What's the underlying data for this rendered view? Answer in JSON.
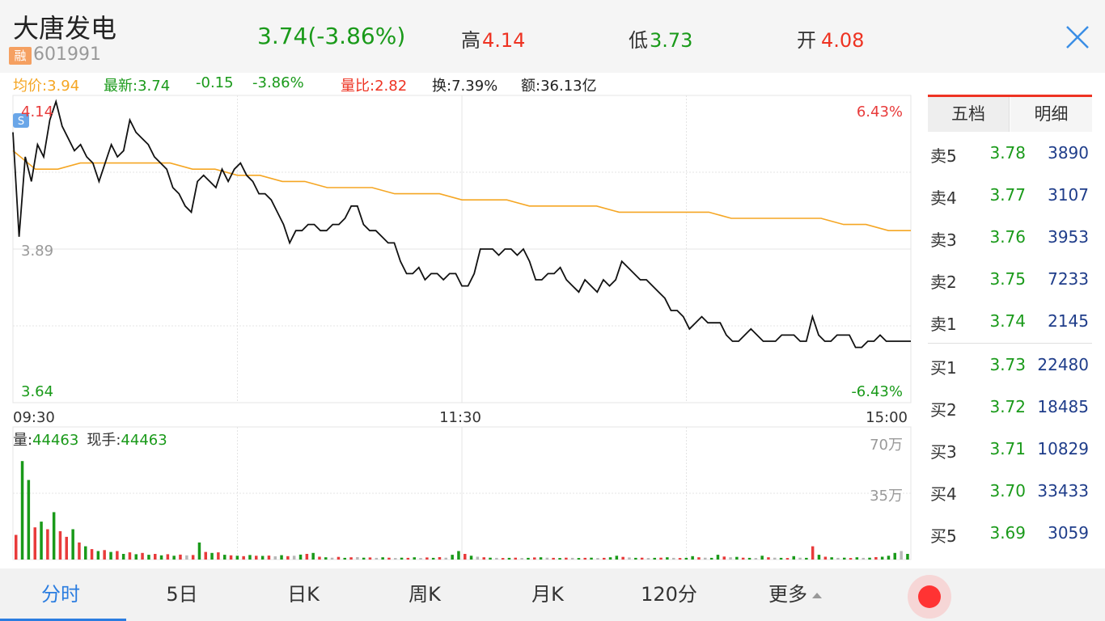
{
  "header": {
    "name": "大唐发电",
    "margin_badge": "融",
    "code": "601991",
    "price": "3.74",
    "change_pct_paren": "(-3.86%)",
    "high_label": "高",
    "high": "4.14",
    "low_label": "低",
    "low": "3.73",
    "open_label": "开",
    "open": "4.08",
    "close_icon": "close-icon"
  },
  "info": {
    "avg": "均价:3.94",
    "latest": "最新:3.74",
    "change": "-0.15",
    "change_pct": "-3.86%",
    "vol_ratio": "量比:2.82",
    "turnover_label": "换:",
    "turnover": "7.39%",
    "amount_label": "额:",
    "amount": "36.13亿"
  },
  "chart": {
    "price_high_label": "4.14",
    "price_mid_label": "3.89",
    "price_low_label": "3.64",
    "pct_high_label": "6.43%",
    "pct_low_label": "-6.43%",
    "time_labels": [
      "09:30",
      "11:30",
      "15:00"
    ],
    "volume_label": "量:",
    "volume_value": "44463",
    "current_hand_label": "现手:",
    "current_hand_value": "44463",
    "vol_high_label": "70万",
    "vol_mid_label": "35万",
    "colors": {
      "up": "#e83b3b",
      "down": "#1a9a1a",
      "price_line": "#111111",
      "avg_line": "#f5a623",
      "grid": "#e4e4e4"
    }
  },
  "chart_data": {
    "type": "line",
    "ylim": [
      3.64,
      4.14
    ],
    "reference_price": 3.89,
    "series": [
      {
        "name": "最新",
        "values": [
          4.08,
          3.91,
          4.04,
          4.0,
          4.06,
          4.04,
          4.1,
          4.13,
          4.09,
          4.07,
          4.05,
          4.06,
          4.04,
          4.03,
          4.0,
          4.03,
          4.06,
          4.04,
          4.05,
          4.1,
          4.08,
          4.07,
          4.06,
          4.04,
          4.03,
          4.02,
          3.99,
          3.98,
          3.96,
          3.95,
          4.0,
          4.01,
          4.0,
          3.99,
          4.02,
          4.0,
          4.02,
          4.03,
          4.01,
          4.0,
          3.98,
          3.98,
          3.97,
          3.95,
          3.93,
          3.9,
          3.92,
          3.92,
          3.93,
          3.93,
          3.92,
          3.92,
          3.93,
          3.93,
          3.94,
          3.96,
          3.96,
          3.93,
          3.92,
          3.92,
          3.91,
          3.9,
          3.9,
          3.87,
          3.85,
          3.85,
          3.86,
          3.84,
          3.85,
          3.85,
          3.84,
          3.85,
          3.85,
          3.83,
          3.83,
          3.85,
          3.89,
          3.89,
          3.89,
          3.88,
          3.89,
          3.89,
          3.88,
          3.89,
          3.87,
          3.84,
          3.84,
          3.85,
          3.85,
          3.86,
          3.84,
          3.83,
          3.82,
          3.84,
          3.83,
          3.82,
          3.84,
          3.83,
          3.84,
          3.87,
          3.86,
          3.85,
          3.84,
          3.84,
          3.83,
          3.82,
          3.81,
          3.79,
          3.79,
          3.78,
          3.76,
          3.77,
          3.78,
          3.77,
          3.77,
          3.77,
          3.75,
          3.74,
          3.74,
          3.75,
          3.76,
          3.75,
          3.74,
          3.74,
          3.74,
          3.75,
          3.75,
          3.75,
          3.74,
          3.74,
          3.78,
          3.75,
          3.74,
          3.74,
          3.75,
          3.75,
          3.75,
          3.73,
          3.73,
          3.74,
          3.74,
          3.75,
          3.74,
          3.74,
          3.74,
          3.74,
          3.74
        ]
      },
      {
        "name": "均价",
        "values": [
          4.05,
          4.02,
          4.02,
          4.03,
          4.03,
          4.03,
          4.03,
          4.03,
          4.02,
          4.02,
          4.01,
          4.01,
          4.0,
          4.0,
          3.99,
          3.99,
          3.99,
          3.98,
          3.98,
          3.98,
          3.97,
          3.97,
          3.97,
          3.96,
          3.96,
          3.96,
          3.96,
          3.95,
          3.95,
          3.95,
          3.95,
          3.95,
          3.94,
          3.94,
          3.94,
          3.94,
          3.94,
          3.93,
          3.93,
          3.92,
          3.92
        ]
      }
    ],
    "volume_ylim": [
      0,
      700000
    ],
    "volume": [
      {
        "v": 130000,
        "c": "up"
      },
      {
        "v": 520000,
        "c": "down"
      },
      {
        "v": 420000,
        "c": "down"
      },
      {
        "v": 170000,
        "c": "up"
      },
      {
        "v": 200000,
        "c": "down"
      },
      {
        "v": 160000,
        "c": "up"
      },
      {
        "v": 250000,
        "c": "down"
      },
      {
        "v": 150000,
        "c": "up"
      },
      {
        "v": 120000,
        "c": "up"
      },
      {
        "v": 160000,
        "c": "down"
      },
      {
        "v": 90000,
        "c": "up"
      },
      {
        "v": 70000,
        "c": "down"
      },
      {
        "v": 55000,
        "c": "up"
      },
      {
        "v": 45000,
        "c": "down"
      },
      {
        "v": 50000,
        "c": "up"
      },
      {
        "v": 40000,
        "c": "down"
      },
      {
        "v": 45000,
        "c": "up"
      },
      {
        "v": 30000,
        "c": "down"
      },
      {
        "v": 38000,
        "c": "up"
      },
      {
        "v": 28000,
        "c": "down"
      },
      {
        "v": 35000,
        "c": "up"
      },
      {
        "v": 25000,
        "c": "down"
      },
      {
        "v": 30000,
        "c": "up"
      },
      {
        "v": 22000,
        "c": "down"
      },
      {
        "v": 28000,
        "c": "up"
      },
      {
        "v": 20000,
        "c": "down"
      },
      {
        "v": 26000,
        "c": "up"
      },
      {
        "v": 22000,
        "c": "gray"
      },
      {
        "v": 24000,
        "c": "up"
      },
      {
        "v": 90000,
        "c": "down"
      },
      {
        "v": 40000,
        "c": "up"
      },
      {
        "v": 35000,
        "c": "down"
      },
      {
        "v": 38000,
        "c": "up"
      },
      {
        "v": 25000,
        "c": "down"
      },
      {
        "v": 22000,
        "c": "up"
      },
      {
        "v": 20000,
        "c": "down"
      },
      {
        "v": 18000,
        "c": "up"
      },
      {
        "v": 24000,
        "c": "down"
      },
      {
        "v": 20000,
        "c": "up"
      },
      {
        "v": 19000,
        "c": "down"
      },
      {
        "v": 21000,
        "c": "up"
      },
      {
        "v": 17000,
        "c": "gray"
      },
      {
        "v": 23000,
        "c": "down"
      },
      {
        "v": 18000,
        "c": "up"
      },
      {
        "v": 20000,
        "c": "gray"
      },
      {
        "v": 26000,
        "c": "down"
      },
      {
        "v": 30000,
        "c": "up"
      },
      {
        "v": 35000,
        "c": "down"
      },
      {
        "v": 15000,
        "c": "up"
      },
      {
        "v": 12000,
        "c": "down"
      },
      {
        "v": 10000,
        "c": "gray"
      },
      {
        "v": 14000,
        "c": "up"
      },
      {
        "v": 9000,
        "c": "down"
      },
      {
        "v": 12000,
        "c": "up"
      },
      {
        "v": 13000,
        "c": "gray"
      },
      {
        "v": 10000,
        "c": "down"
      },
      {
        "v": 11000,
        "c": "up"
      },
      {
        "v": 9000,
        "c": "gray"
      },
      {
        "v": 12000,
        "c": "down"
      },
      {
        "v": 10000,
        "c": "up"
      },
      {
        "v": 8000,
        "c": "gray"
      },
      {
        "v": 10000,
        "c": "down"
      },
      {
        "v": 9000,
        "c": "up"
      },
      {
        "v": 12000,
        "c": "down"
      },
      {
        "v": 8000,
        "c": "gray"
      },
      {
        "v": 11000,
        "c": "up"
      },
      {
        "v": 9000,
        "c": "down"
      },
      {
        "v": 13000,
        "c": "up"
      },
      {
        "v": 10000,
        "c": "gray"
      },
      {
        "v": 25000,
        "c": "down"
      },
      {
        "v": 45000,
        "c": "down"
      },
      {
        "v": 30000,
        "c": "up"
      },
      {
        "v": 20000,
        "c": "down"
      },
      {
        "v": 15000,
        "c": "gray"
      },
      {
        "v": 12000,
        "c": "up"
      },
      {
        "v": 10000,
        "c": "down"
      },
      {
        "v": 9000,
        "c": "gray"
      },
      {
        "v": 8000,
        "c": "up"
      },
      {
        "v": 9000,
        "c": "down"
      },
      {
        "v": 10000,
        "c": "up"
      },
      {
        "v": 8000,
        "c": "gray"
      },
      {
        "v": 9000,
        "c": "down"
      },
      {
        "v": 11000,
        "c": "up"
      },
      {
        "v": 12000,
        "c": "down"
      },
      {
        "v": 10000,
        "c": "gray"
      },
      {
        "v": 9000,
        "c": "up"
      },
      {
        "v": 8000,
        "c": "down"
      },
      {
        "v": 10000,
        "c": "up"
      },
      {
        "v": 9000,
        "c": "gray"
      },
      {
        "v": 8000,
        "c": "down"
      },
      {
        "v": 9000,
        "c": "up"
      },
      {
        "v": 10000,
        "c": "down"
      },
      {
        "v": 8000,
        "c": "gray"
      },
      {
        "v": 9000,
        "c": "up"
      },
      {
        "v": 12000,
        "c": "down"
      },
      {
        "v": 20000,
        "c": "down"
      },
      {
        "v": 14000,
        "c": "up"
      },
      {
        "v": 11000,
        "c": "gray"
      },
      {
        "v": 9000,
        "c": "down"
      },
      {
        "v": 10000,
        "c": "up"
      },
      {
        "v": 8000,
        "c": "gray"
      },
      {
        "v": 9000,
        "c": "down"
      },
      {
        "v": 10000,
        "c": "up"
      },
      {
        "v": 12000,
        "c": "down"
      },
      {
        "v": 9000,
        "c": "gray"
      },
      {
        "v": 8000,
        "c": "up"
      },
      {
        "v": 9000,
        "c": "down"
      },
      {
        "v": 18000,
        "c": "down"
      },
      {
        "v": 12000,
        "c": "up"
      },
      {
        "v": 10000,
        "c": "gray"
      },
      {
        "v": 9000,
        "c": "down"
      },
      {
        "v": 25000,
        "c": "down"
      },
      {
        "v": 16000,
        "c": "up"
      },
      {
        "v": 12000,
        "c": "gray"
      },
      {
        "v": 14000,
        "c": "down"
      },
      {
        "v": 10000,
        "c": "up"
      },
      {
        "v": 9000,
        "c": "down"
      },
      {
        "v": 8000,
        "c": "gray"
      },
      {
        "v": 20000,
        "c": "down"
      },
      {
        "v": 12000,
        "c": "up"
      },
      {
        "v": 10000,
        "c": "gray"
      },
      {
        "v": 9000,
        "c": "down"
      },
      {
        "v": 8000,
        "c": "up"
      },
      {
        "v": 18000,
        "c": "down"
      },
      {
        "v": 10000,
        "c": "gray"
      },
      {
        "v": 9000,
        "c": "down"
      },
      {
        "v": 70000,
        "c": "up"
      },
      {
        "v": 25000,
        "c": "down"
      },
      {
        "v": 15000,
        "c": "up"
      },
      {
        "v": 12000,
        "c": "down"
      },
      {
        "v": 9000,
        "c": "gray"
      },
      {
        "v": 10000,
        "c": "down"
      },
      {
        "v": 8000,
        "c": "up"
      },
      {
        "v": 12000,
        "c": "down"
      },
      {
        "v": 9000,
        "c": "gray"
      },
      {
        "v": 10000,
        "c": "down"
      },
      {
        "v": 13000,
        "c": "up"
      },
      {
        "v": 15000,
        "c": "down"
      },
      {
        "v": 20000,
        "c": "down"
      },
      {
        "v": 35000,
        "c": "down"
      },
      {
        "v": 45000,
        "c": "gray"
      },
      {
        "v": 30000,
        "c": "down"
      }
    ]
  },
  "order_book": {
    "tab_active": "五档",
    "tab_other": "明细",
    "asks": [
      {
        "label": "卖5",
        "price": "3.78",
        "volume": "3890"
      },
      {
        "label": "卖4",
        "price": "3.77",
        "volume": "3107"
      },
      {
        "label": "卖3",
        "price": "3.76",
        "volume": "3953"
      },
      {
        "label": "卖2",
        "price": "3.75",
        "volume": "7233"
      },
      {
        "label": "卖1",
        "price": "3.74",
        "volume": "2145"
      }
    ],
    "bids": [
      {
        "label": "买1",
        "price": "3.73",
        "volume": "22480"
      },
      {
        "label": "买2",
        "price": "3.72",
        "volume": "18485"
      },
      {
        "label": "买3",
        "price": "3.71",
        "volume": "10829"
      },
      {
        "label": "买4",
        "price": "3.70",
        "volume": "33433"
      },
      {
        "label": "买5",
        "price": "3.69",
        "volume": "3059"
      }
    ]
  },
  "nav": {
    "fenshi": "分时",
    "five_day": "5日",
    "day_k": "日K",
    "week_k": "周K",
    "month_k": "月K",
    "min120": "120分",
    "more": "更多"
  }
}
